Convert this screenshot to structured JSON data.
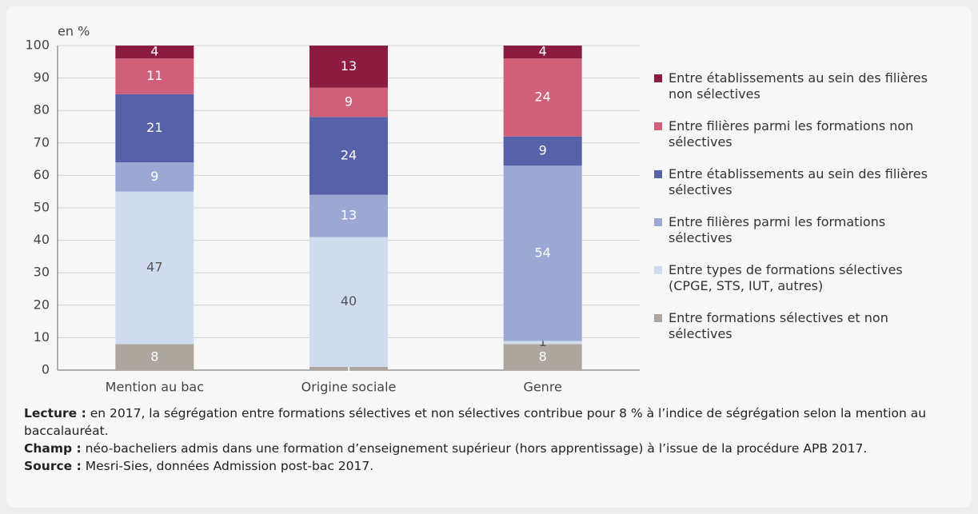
{
  "chart_data": {
    "type": "stacked_bar",
    "y_unit_label": "en %",
    "categories": [
      "Mention au bac",
      "Origine sociale",
      "Genre"
    ],
    "series": [
      {
        "name": "Entre formations sélectives et non sélectives",
        "color": "#aca69f",
        "values": [
          8,
          1,
          8
        ]
      },
      {
        "name": "Entre types de formations sélectives (CPGE, STS, IUT, autres)",
        "color": "#d1dbf0",
        "values": [
          47,
          40,
          1
        ]
      },
      {
        "name": "Entre filières parmi les formations sélectives",
        "color": "#9ba8d4",
        "values": [
          9,
          13,
          54
        ]
      },
      {
        "name": "Entre établissements au sein des filières sélectives",
        "color": "#5561a9",
        "values": [
          21,
          24,
          9
        ]
      },
      {
        "name": "Entre filières parmi les formations non sélectives",
        "color": "#d0607a",
        "values": [
          11,
          9,
          24
        ]
      },
      {
        "name": "Entre établissements au sein des filières non sélectives",
        "color": "#8c1b40",
        "values": [
          4,
          13,
          4
        ]
      }
    ],
    "ylim": [
      0,
      100
    ],
    "yticks": [
      0,
      10,
      20,
      30,
      40,
      50,
      60,
      70,
      80,
      90,
      100
    ],
    "grid": true
  },
  "notes": [
    {
      "label": "Lecture :",
      "text": "en 2017, la ségrégation entre formations sélectives et non sélectives contribue pour 8 % à l’indice de ségrégation selon la mention au baccalauréat."
    },
    {
      "label": "Champ :",
      "text": "néo-bacheliers admis dans une formation d’enseignement supérieur (hors apprentissage) à l’issue de la procédure APB 2017."
    },
    {
      "label": "Source :",
      "text": "Mesri-Sies, données Admission post-bac 2017."
    }
  ]
}
